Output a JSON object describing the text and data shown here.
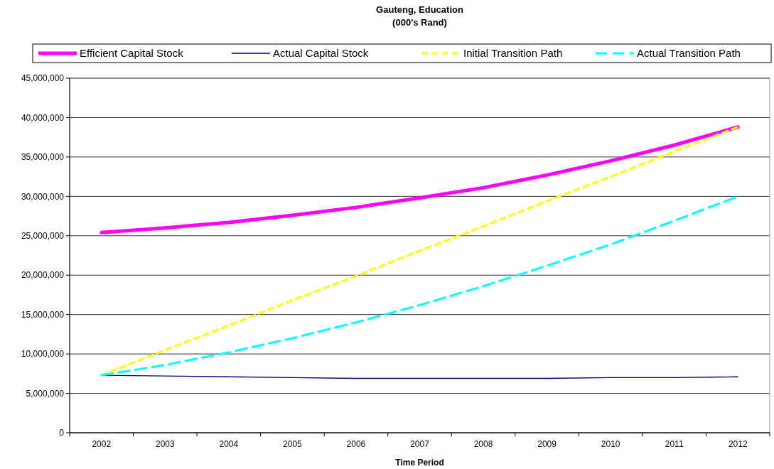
{
  "chart_data": {
    "type": "line",
    "title": "Gauteng, Education\n(000's Rand)",
    "xlabel": "Time Period",
    "categories": [
      "2002",
      "2003",
      "2004",
      "2005",
      "2006",
      "2007",
      "2008",
      "2009",
      "2010",
      "2011",
      "2012"
    ],
    "series": [
      {
        "name": "Efficient Capital Stock",
        "color": "#ff00ff",
        "line_style": "solid",
        "values": [
          25400000,
          26000000,
          26700000,
          27600000,
          28600000,
          29800000,
          31100000,
          32700000,
          34500000,
          36500000,
          38800000
        ]
      },
      {
        "name": "Actual Capital Stock",
        "color": "#000080",
        "line_style": "solid",
        "values": [
          7300000,
          7200000,
          7100000,
          7000000,
          6900000,
          6900000,
          6900000,
          6900000,
          7000000,
          7000000,
          7100000
        ]
      },
      {
        "name": "Initial Transition Path",
        "color": "#ffff00",
        "line_style": "dashed",
        "values": [
          7300000,
          10500000,
          13600000,
          16800000,
          19900000,
          23100000,
          26200000,
          29400000,
          32500000,
          35700000,
          38800000
        ]
      },
      {
        "name": "Actual Transition Path",
        "color": "#00ffff",
        "line_style": "dashed",
        "values": [
          7300000,
          8600000,
          10200000,
          12000000,
          14000000,
          16200000,
          18600000,
          21200000,
          23900000,
          26900000,
          30000000
        ]
      }
    ],
    "ylim": [
      0,
      45000000
    ],
    "yticks": [
      {
        "value": 0,
        "label": "0"
      },
      {
        "value": 5000000,
        "label": "5,000,000"
      },
      {
        "value": 10000000,
        "label": "10,000,000"
      },
      {
        "value": 15000000,
        "label": "15,000,000"
      },
      {
        "value": 20000000,
        "label": "20,000,000"
      },
      {
        "value": 25000000,
        "label": "25,000,000"
      },
      {
        "value": 30000000,
        "label": "30,000,000"
      },
      {
        "value": 35000000,
        "label": "35,000,000"
      },
      {
        "value": 40000000,
        "label": "40,000,000"
      },
      {
        "value": 45000000,
        "label": "45,000,000"
      }
    ],
    "grid": "y",
    "legend": "top",
    "marker": "none"
  }
}
